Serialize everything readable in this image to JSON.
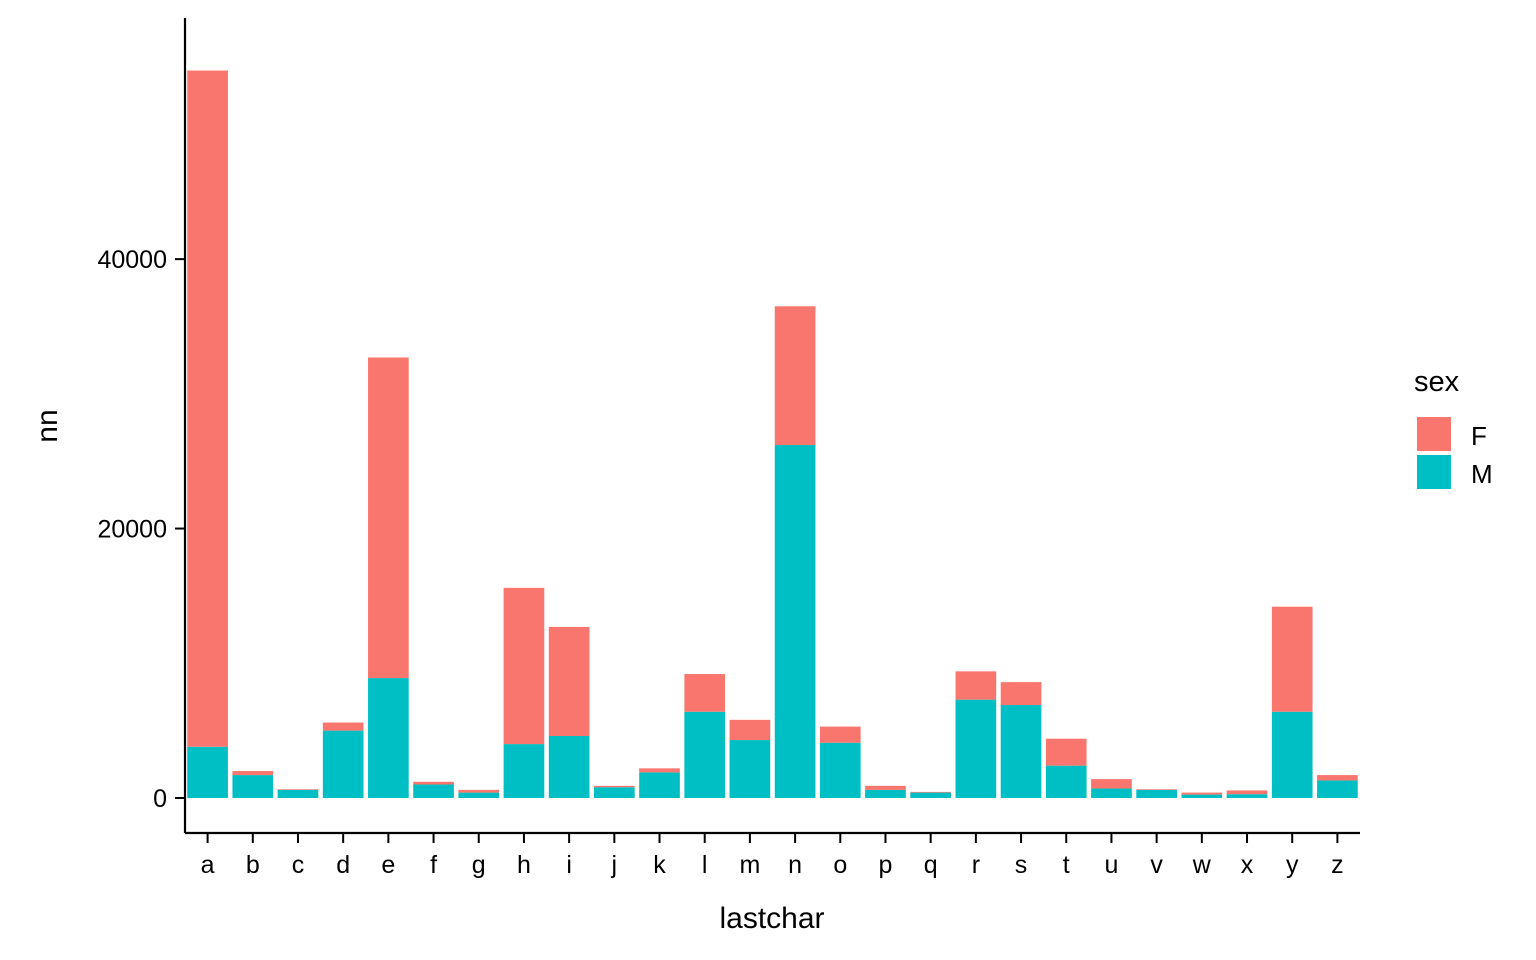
{
  "chart_data": {
    "type": "bar",
    "stacked": true,
    "title": "",
    "xlabel": "lastchar",
    "ylabel": "nn",
    "ylim": [
      -2600,
      57900
    ],
    "yticks": [
      0,
      20000,
      40000
    ],
    "ytick_labels": [
      "0",
      "20000",
      "40000"
    ],
    "grid": false,
    "legend_position": "right",
    "categories": [
      "a",
      "b",
      "c",
      "d",
      "e",
      "f",
      "g",
      "h",
      "i",
      "j",
      "k",
      "l",
      "m",
      "n",
      "o",
      "p",
      "q",
      "r",
      "s",
      "t",
      "u",
      "v",
      "w",
      "x",
      "y",
      "z"
    ],
    "series": [
      {
        "name": "M",
        "color": "#00BFC4",
        "values": [
          3800,
          1700,
          600,
          5000,
          8900,
          1000,
          400,
          4000,
          4600,
          800,
          1900,
          6400,
          4300,
          26200,
          4100,
          600,
          400,
          7300,
          6900,
          2400,
          700,
          600,
          250,
          280,
          6400,
          1300
        ]
      },
      {
        "name": "F",
        "color": "#F8766D",
        "values": [
          50200,
          300,
          50,
          600,
          23800,
          200,
          200,
          11600,
          8100,
          100,
          300,
          2800,
          1500,
          10300,
          1200,
          300,
          50,
          2100,
          1700,
          2000,
          700,
          50,
          150,
          280,
          7800,
          400
        ]
      }
    ]
  },
  "legend": {
    "title": "sex",
    "items": [
      {
        "label": "F",
        "color": "#F8766D"
      },
      {
        "label": "M",
        "color": "#00BFC4"
      }
    ]
  }
}
